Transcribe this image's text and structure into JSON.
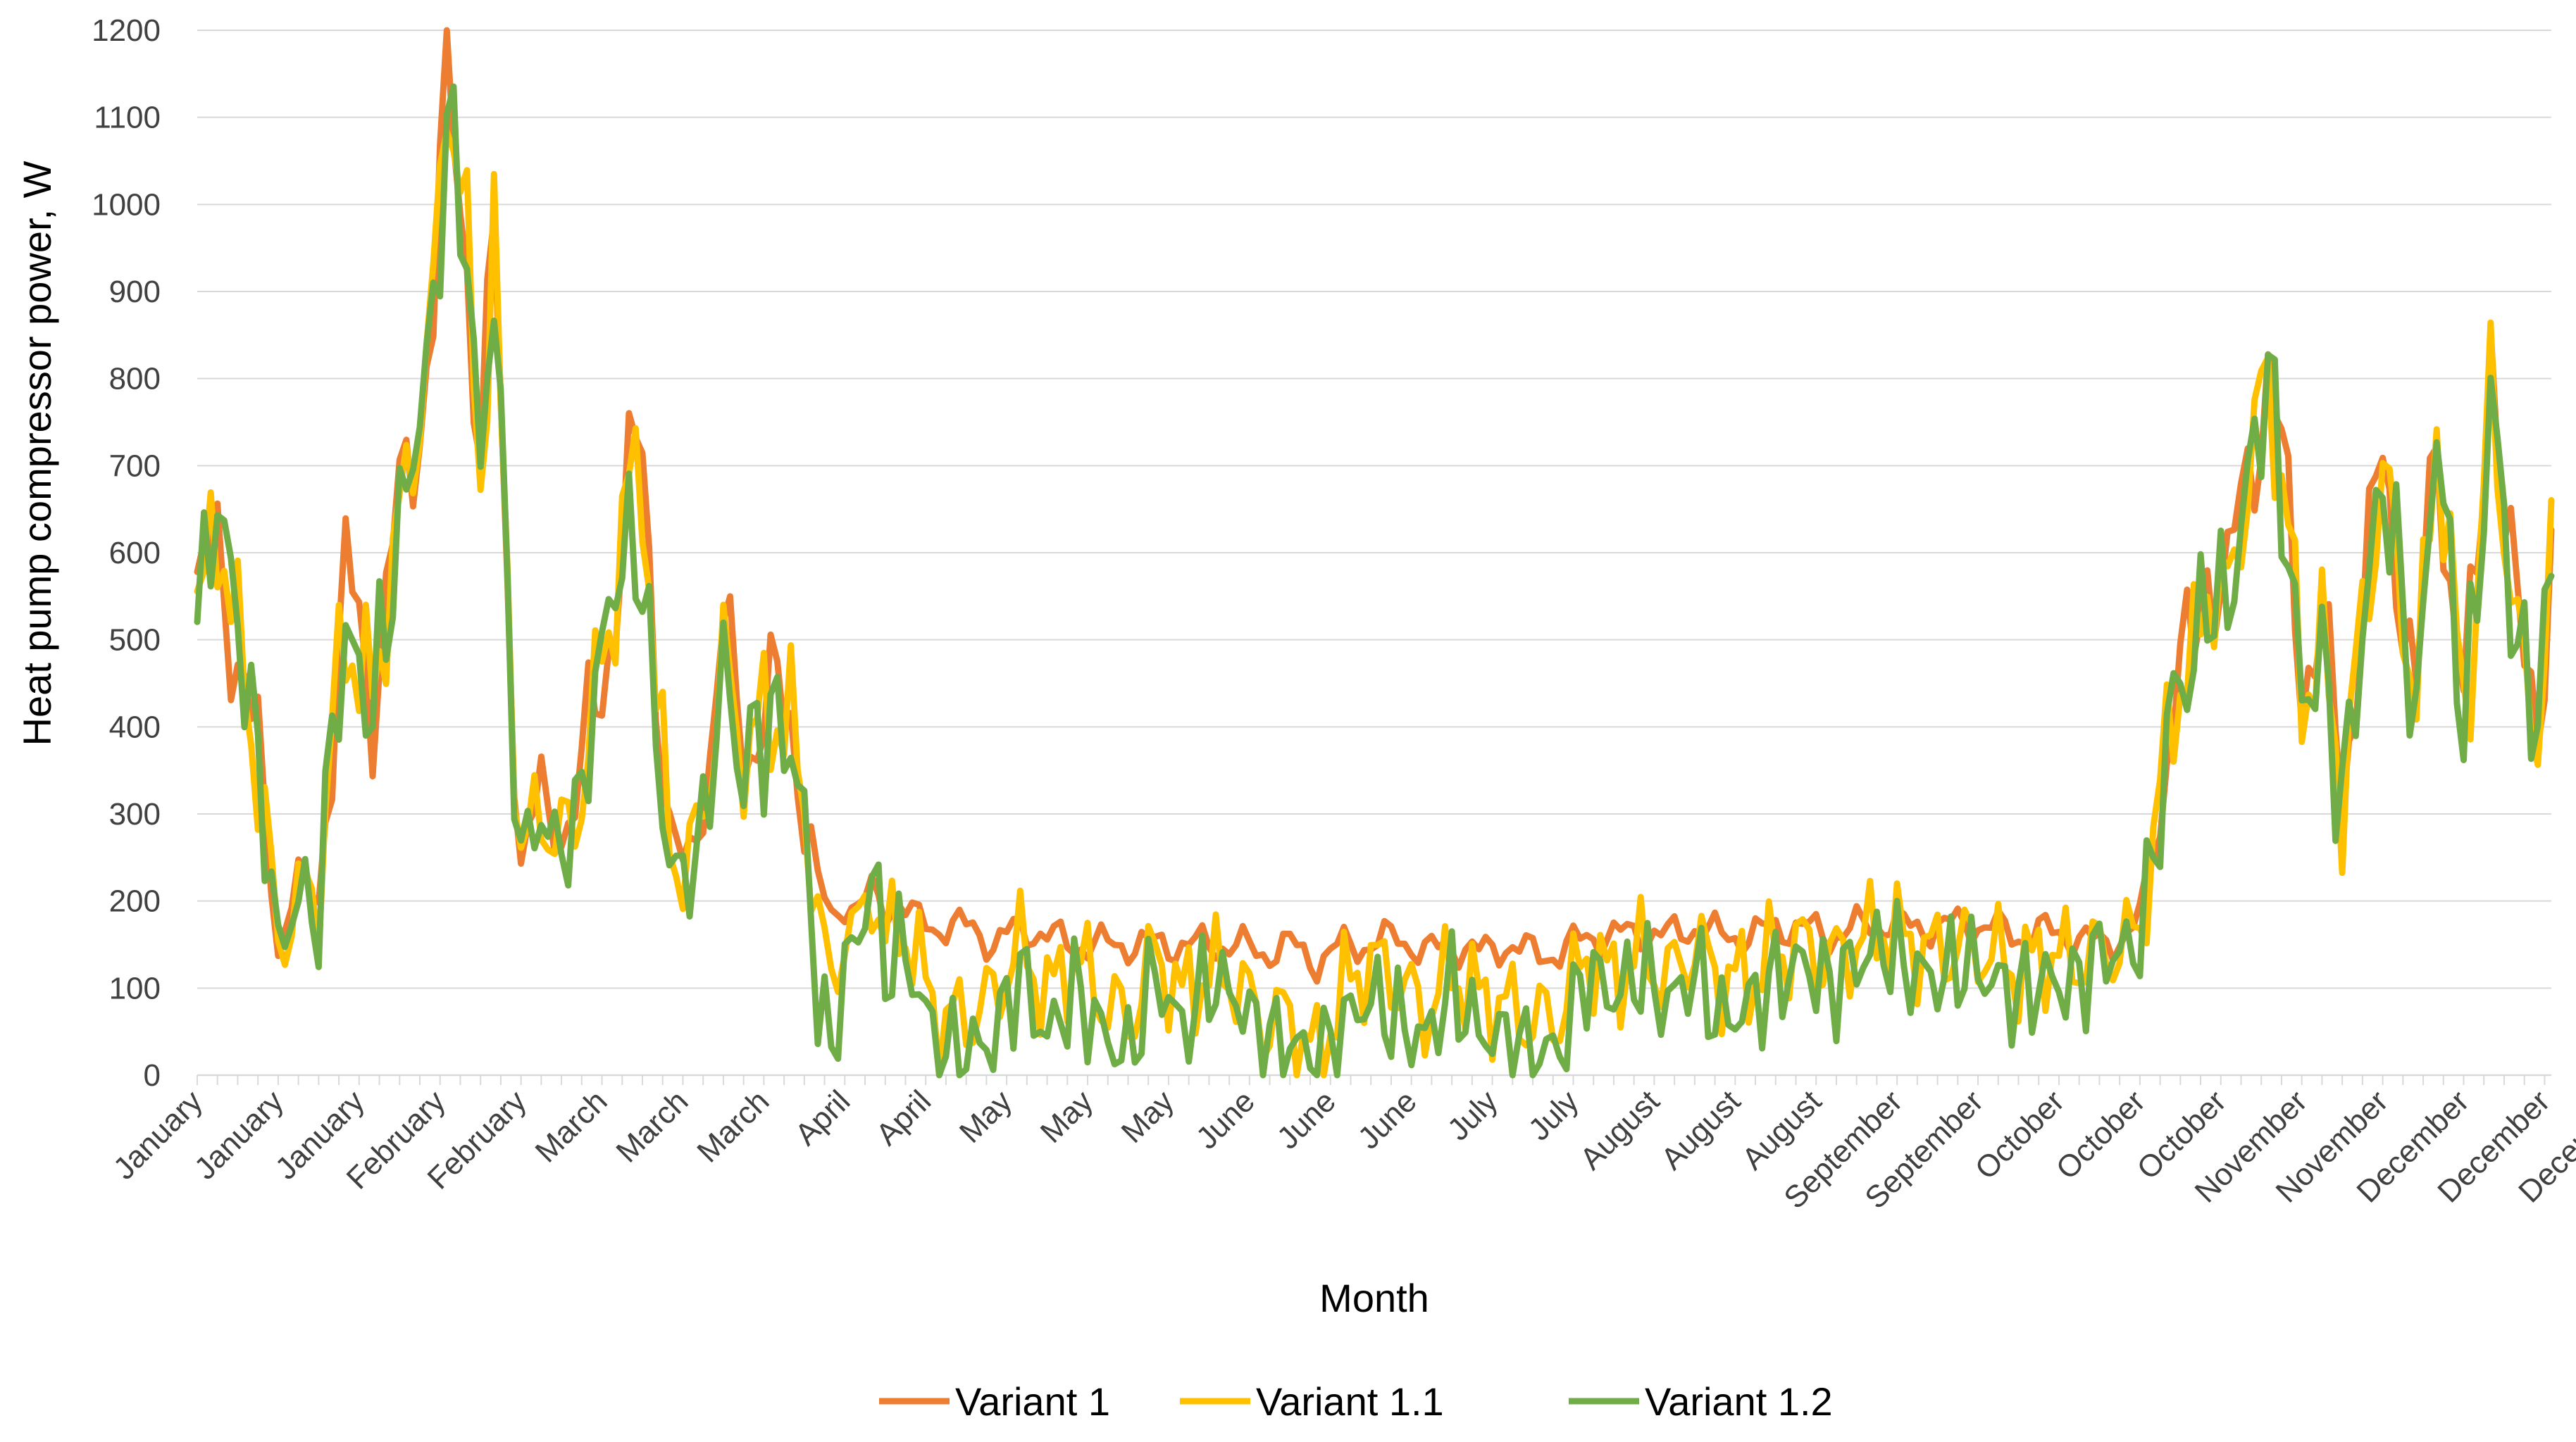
{
  "chart_data": {
    "type": "line",
    "title": "",
    "xlabel": "Month",
    "ylabel": "Heat pump compressor power, W",
    "ylim": [
      0,
      1200
    ],
    "yticks": [
      "0",
      "100",
      "200",
      "300",
      "400",
      "500",
      "600",
      "700",
      "800",
      "900",
      "1000",
      "1100",
      "1200"
    ],
    "categories": [
      "January",
      "January",
      "January",
      "February",
      "February",
      "March",
      "March",
      "March",
      "April",
      "April",
      "May",
      "May",
      "May",
      "June",
      "June",
      "June",
      "July",
      "July",
      "August",
      "August",
      "August",
      "September",
      "September",
      "October",
      "October",
      "October",
      "November",
      "November",
      "December",
      "December",
      "December"
    ],
    "points_per_category": 12,
    "legend_position": "bottom-center",
    "grid": true,
    "anchors": [
      [
        0,
        545,
        520,
        515
      ],
      [
        3,
        600,
        640,
        665
      ],
      [
        7,
        450,
        450,
        470
      ],
      [
        10,
        300,
        300,
        290
      ],
      [
        12,
        145,
        145,
        140
      ],
      [
        15,
        230,
        210,
        210
      ],
      [
        18,
        200,
        200,
        180
      ],
      [
        20,
        400,
        400,
        400
      ],
      [
        22,
        570,
        510,
        500
      ],
      [
        26,
        440,
        430,
        420
      ],
      [
        29,
        600,
        590,
        580
      ],
      [
        32,
        720,
        720,
        720
      ],
      [
        35,
        880,
        880,
        860
      ],
      [
        37,
        1150,
        1150,
        1100
      ],
      [
        40,
        950,
        950,
        950
      ],
      [
        42,
        700,
        690,
        680
      ],
      [
        44,
        960,
        960,
        930
      ],
      [
        46,
        560,
        550,
        530
      ],
      [
        48,
        255,
        255,
        250
      ],
      [
        51,
        320,
        310,
        300
      ],
      [
        53,
        270,
        270,
        260
      ],
      [
        56,
        300,
        290,
        280
      ],
      [
        59,
        420,
        430,
        440
      ],
      [
        62,
        550,
        560,
        580
      ],
      [
        64,
        670,
        670,
        600
      ],
      [
        66,
        720,
        700,
        590
      ],
      [
        68,
        480,
        430,
        380
      ],
      [
        70,
        290,
        270,
        250
      ],
      [
        72,
        240,
        230,
        220
      ],
      [
        75,
        300,
        300,
        280
      ],
      [
        78,
        500,
        480,
        480
      ],
      [
        80,
        420,
        390,
        360
      ],
      [
        82,
        390,
        380,
        370
      ],
      [
        85,
        420,
        420,
        410
      ],
      [
        88,
        420,
        400,
        380
      ],
      [
        90,
        330,
        310,
        290
      ],
      [
        92,
        220,
        180,
        90
      ],
      [
        94,
        180,
        100,
        20
      ],
      [
        96,
        200,
        170,
        130
      ],
      [
        98,
        190,
        160,
        150
      ],
      [
        100,
        210,
        220,
        240
      ],
      [
        102,
        190,
        150,
        120
      ],
      [
        104,
        200,
        170,
        150
      ],
      [
        106,
        180,
        150,
        120
      ],
      [
        110,
        170,
        60,
        20
      ],
      [
        115,
        170,
        70,
        30
      ],
      [
        118,
        150,
        90,
        40
      ],
      [
        122,
        170,
        150,
        120
      ],
      [
        126,
        160,
        90,
        40
      ],
      [
        130,
        150,
        140,
        100
      ],
      [
        134,
        150,
        90,
        50
      ],
      [
        138,
        150,
        60,
        20
      ],
      [
        142,
        150,
        140,
        120
      ],
      [
        146,
        150,
        90,
        50
      ],
      [
        150,
        150,
        120,
        110
      ],
      [
        154,
        150,
        110,
        90
      ],
      [
        158,
        140,
        60,
        40
      ],
      [
        162,
        150,
        70,
        40
      ],
      [
        166,
        130,
        20,
        10
      ],
      [
        170,
        150,
        100,
        60
      ],
      [
        174,
        150,
        130,
        90
      ],
      [
        178,
        160,
        110,
        60
      ],
      [
        182,
        140,
        70,
        40
      ],
      [
        186,
        150,
        120,
        100
      ],
      [
        190,
        140,
        90,
        50
      ],
      [
        194,
        150,
        80,
        40
      ],
      [
        198,
        140,
        60,
        20
      ],
      [
        202,
        140,
        70,
        30
      ],
      [
        206,
        160,
        140,
        120
      ],
      [
        210,
        160,
        110,
        90
      ],
      [
        214,
        165,
        140,
        120
      ],
      [
        218,
        160,
        110,
        80
      ],
      [
        222,
        170,
        150,
        120
      ],
      [
        226,
        160,
        110,
        60
      ],
      [
        230,
        160,
        110,
        80
      ],
      [
        234,
        170,
        140,
        110
      ],
      [
        238,
        170,
        150,
        130
      ],
      [
        242,
        160,
        130,
        100
      ],
      [
        246,
        170,
        150,
        130
      ],
      [
        250,
        175,
        170,
        150
      ],
      [
        254,
        170,
        150,
        120
      ],
      [
        258,
        170,
        140,
        110
      ],
      [
        262,
        175,
        150,
        130
      ],
      [
        266,
        170,
        140,
        110
      ],
      [
        270,
        160,
        120,
        90
      ],
      [
        274,
        165,
        140,
        110
      ],
      [
        278,
        160,
        130,
        100
      ],
      [
        282,
        150,
        140,
        140
      ],
      [
        286,
        160,
        150,
        140
      ],
      [
        288,
        180,
        170,
        160
      ],
      [
        290,
        260,
        260,
        250
      ],
      [
        293,
        440,
        440,
        440
      ],
      [
        296,
        480,
        470,
        470
      ],
      [
        298,
        600,
        570,
        560
      ],
      [
        301,
        550,
        540,
        530
      ],
      [
        304,
        700,
        690,
        680
      ],
      [
        307,
        800,
        810,
        810
      ],
      [
        310,
        640,
        620,
        600
      ],
      [
        312,
        470,
        440,
        430
      ],
      [
        315,
        500,
        490,
        480
      ],
      [
        318,
        330,
        320,
        310
      ],
      [
        321,
        540,
        520,
        510
      ],
      [
        324,
        700,
        690,
        690
      ],
      [
        327,
        560,
        550,
        540
      ],
      [
        329,
        420,
        410,
        400
      ],
      [
        332,
        750,
        760,
        760
      ],
      [
        334,
        580,
        570,
        560
      ],
      [
        336,
        430,
        420,
        410
      ],
      [
        338,
        550,
        540,
        540
      ],
      [
        340,
        880,
        790,
        790
      ],
      [
        342,
        650,
        640,
        630
      ],
      [
        344,
        500,
        490,
        480
      ],
      [
        347,
        430,
        400,
        420
      ],
      [
        349,
        600,
        580,
        580
      ]
    ],
    "series": [
      {
        "name": "Variant 1",
        "color": "#ED7D31",
        "index": 1,
        "freq": 0.9,
        "amp": 70
      },
      {
        "name": "Variant 1.1",
        "color": "#FFC000",
        "index": 2,
        "freq": 1.3,
        "amp": 70
      },
      {
        "name": "Variant 1.2",
        "color": "#70AD47",
        "index": 3,
        "freq": 1.7,
        "amp": 70
      }
    ],
    "x_count": 350
  }
}
